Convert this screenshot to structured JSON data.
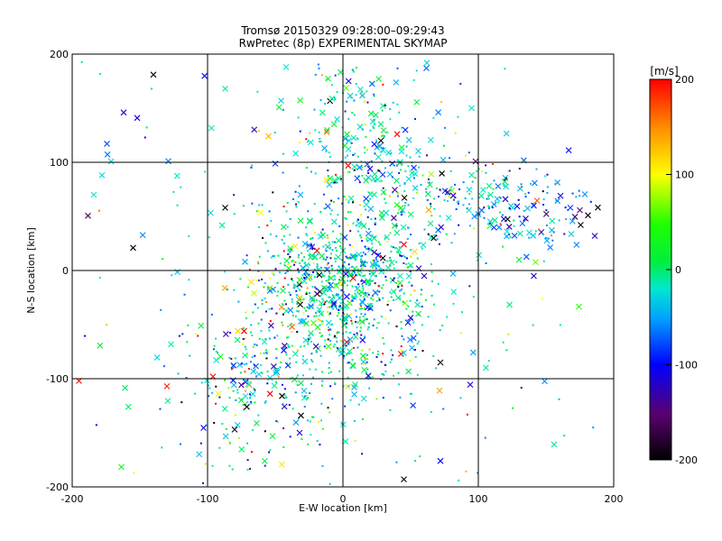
{
  "chart_data": {
    "type": "scatter",
    "title": "Tromsø 20150329 09:28:00–09:29:43",
    "subtitle": "RwPretec (8p) EXPERIMENTAL SKYMAP",
    "xlabel": "E-W location [km]",
    "ylabel": "N-S location [km]",
    "xlim": [
      -200,
      200
    ],
    "ylim": [
      -200,
      200
    ],
    "xticks": [
      "-200",
      "-100",
      "0",
      "100",
      "200"
    ],
    "yticks": [
      "-200",
      "-100",
      "0",
      "100",
      "200"
    ],
    "grid": true,
    "grid_values": [
      -100,
      0,
      100
    ],
    "colorbar": {
      "label": "[m/s]",
      "min": -200,
      "max": 200,
      "ticks": [
        "-200",
        "-100",
        "0",
        "100",
        "200"
      ],
      "colormap": "rainbow (black-purple-blue-cyan-green-yellow-red)"
    },
    "markers": [
      "x (larger)",
      "small dot"
    ],
    "point_count_approx": 1600,
    "sample_points": [
      {
        "x": -140,
        "y": 181,
        "v": -200,
        "m": "x"
      },
      {
        "x": -162,
        "y": 146,
        "v": -110,
        "m": "x"
      },
      {
        "x": -152,
        "y": 141,
        "v": -110,
        "m": "x"
      },
      {
        "x": -129,
        "y": 101,
        "v": -60,
        "m": "x"
      },
      {
        "x": -178,
        "y": 88,
        "v": -30,
        "m": "x"
      },
      {
        "x": -184,
        "y": 70,
        "v": -20,
        "m": "x"
      },
      {
        "x": -155,
        "y": 21,
        "v": -200,
        "m": "x"
      },
      {
        "x": -87,
        "y": 58,
        "v": -200,
        "m": "x"
      },
      {
        "x": -195,
        "y": -102,
        "v": 200,
        "m": "x"
      },
      {
        "x": -130,
        "y": -107,
        "v": 190,
        "m": "x"
      },
      {
        "x": -96,
        "y": -98,
        "v": 200,
        "m": "x"
      },
      {
        "x": -73,
        "y": -56,
        "v": 200,
        "m": "x"
      },
      {
        "x": -80,
        "y": -147,
        "v": -190,
        "m": "x"
      },
      {
        "x": -71,
        "y": -126,
        "v": -190,
        "m": "x"
      },
      {
        "x": -45,
        "y": -116,
        "v": -200,
        "m": "x"
      },
      {
        "x": -31,
        "y": -134,
        "v": -200,
        "m": "x"
      },
      {
        "x": -32,
        "y": -150,
        "v": -110,
        "m": "x"
      },
      {
        "x": 45,
        "y": -193,
        "v": -200,
        "m": "x"
      },
      {
        "x": 72,
        "y": -176,
        "v": -100,
        "m": "x"
      },
      {
        "x": 72,
        "y": -85,
        "v": -200,
        "m": "x"
      },
      {
        "x": 28,
        "y": 120,
        "v": -200,
        "m": "x"
      },
      {
        "x": 40,
        "y": 126,
        "v": 200,
        "m": "x"
      },
      {
        "x": 20,
        "y": 94,
        "v": -120,
        "m": "x"
      },
      {
        "x": 67,
        "y": 30,
        "v": -200,
        "m": "x"
      },
      {
        "x": 45,
        "y": 24,
        "v": 200,
        "m": "x"
      },
      {
        "x": 56,
        "y": 2,
        "v": -120,
        "m": "x"
      },
      {
        "x": 60,
        "y": -5,
        "v": -120,
        "m": "x"
      },
      {
        "x": 120,
        "y": 66,
        "v": -120,
        "m": "x"
      },
      {
        "x": 141,
        "y": 60,
        "v": -110,
        "m": "x"
      },
      {
        "x": 135,
        "y": 48,
        "v": -120,
        "m": "x"
      },
      {
        "x": 181,
        "y": 51,
        "v": -200,
        "m": "x"
      },
      {
        "x": 186,
        "y": 32,
        "v": -120,
        "m": "x"
      },
      {
        "x": 168,
        "y": 58,
        "v": -80,
        "m": "x"
      },
      {
        "x": 141,
        "y": -5,
        "v": -120,
        "m": "x"
      },
      {
        "x": -12,
        "y": 128,
        "v": 160,
        "m": "x"
      },
      {
        "x": -55,
        "y": 124,
        "v": 130,
        "m": "x"
      },
      {
        "x": -42,
        "y": 188,
        "v": -20,
        "m": "x"
      },
      {
        "x": -87,
        "y": 168,
        "v": -10,
        "m": "x"
      },
      {
        "x": 62,
        "y": 192,
        "v": -30,
        "m": "x"
      },
      {
        "x": 95,
        "y": 150,
        "v": -20,
        "m": "x"
      }
    ]
  }
}
